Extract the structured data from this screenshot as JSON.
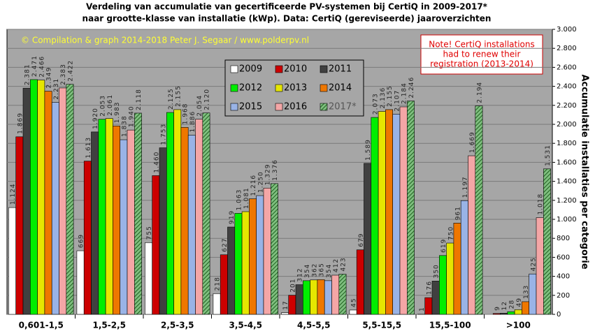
{
  "chart_data": {
    "type": "bar",
    "title": [
      "Verdeling van accumulatie van gecertificeerde PV-systemen bij CertiQ in 2009-2017*",
      "naar grootte-klasse van installatie (kWp).  Data: CertiQ (gereviseerde) jaaroverzichten"
    ],
    "annotation": "© Compilation  & graph 2014-2018 Peter J. Segaar / www.polderpv.nl",
    "note": [
      "Note! CertiQ installations",
      "had to renew their",
      "registration (2013-2014)"
    ],
    "y_label": "Accumulatie installaties per categorie",
    "categories": [
      "0,601-1,5",
      "1,5-2,5",
      "2,5-3,5",
      "3,5-4,5",
      "4,5-5,5",
      "5,5-15,5",
      "15,5-100",
      ">100"
    ],
    "series": [
      {
        "name": "2009",
        "color": "#ffffff",
        "values": [
          1124,
          669,
          755,
          218,
          17,
          45,
          1,
          null
        ],
        "value_labels": [
          "1.124",
          "669",
          "755",
          "218",
          "17",
          "45",
          "1",
          null
        ]
      },
      {
        "name": "2010",
        "color": "#cc0000",
        "values": [
          1869,
          1613,
          1460,
          627,
          201,
          679,
          176,
          9
        ],
        "value_labels": [
          "1.869",
          "1.613",
          "1.460",
          "627",
          "201",
          "679",
          "176",
          "9"
        ]
      },
      {
        "name": "2011",
        "color": "#404040",
        "values": [
          2381,
          1920,
          1753,
          919,
          312,
          1589,
          350,
          12
        ],
        "value_labels": [
          "2.381",
          "1.920",
          "1.753",
          "919",
          "312",
          "1.589",
          "350",
          "12"
        ]
      },
      {
        "name": "2012",
        "color": "#00ee00",
        "values": [
          2471,
          2053,
          2125,
          1063,
          354,
          2073,
          619,
          28
        ],
        "value_labels": [
          "2.471",
          "2.053",
          "2.125",
          "1.063",
          "354",
          "2.073",
          "619",
          "28"
        ]
      },
      {
        "name": "2013",
        "color": "#e6e600",
        "values": [
          2466,
          2061,
          2155,
          1081,
          362,
          2136,
          750,
          49
        ],
        "value_labels": [
          "2.466",
          "2.061",
          "2.155",
          "1.081",
          "362",
          "2.136",
          "750",
          "49"
        ]
      },
      {
        "name": "2014",
        "color": "#ee7700",
        "values": [
          2349,
          1983,
          1968,
          1216,
          365,
          2155,
          961,
          133
        ],
        "value_labels": [
          "2.349",
          "1.983",
          "1.968",
          "1.216",
          "365",
          "2.155",
          "961",
          "133"
        ]
      },
      {
        "name": "2015",
        "color": "#99b3e6",
        "values": [
          2231,
          1838,
          1886,
          1250,
          354,
          2107,
          1197,
          425
        ],
        "value_labels": [
          "2.231",
          "1.838",
          "1.886",
          "1.250",
          "354",
          "2.107",
          "1.197",
          "425"
        ]
      },
      {
        "name": "2016",
        "color": "#f4a6a6",
        "values": [
          2383,
          1940,
          2054,
          1329,
          412,
          2184,
          1669,
          1018
        ],
        "value_labels": [
          "2.383",
          "1.940",
          "2.054",
          "1.329",
          "412",
          "2.184",
          "1.669",
          "1.018"
        ]
      },
      {
        "name": "2017*",
        "color": "#7fbf7f",
        "hatched": true,
        "values": [
          2422,
          2118,
          2120,
          1376,
          423,
          2246,
          2194,
          1531
        ],
        "value_labels": [
          "2.422",
          "2.118",
          "2.120",
          "1.376",
          "423",
          "2.246",
          "2.194",
          "1.531"
        ]
      }
    ],
    "ylim": [
      0,
      3000
    ],
    "yticks": [
      0,
      200,
      400,
      600,
      800,
      {
        "value": 1000,
        "label": "1.000"
      },
      {
        "value": 1200,
        "label": "1.200"
      },
      {
        "value": 1400,
        "label": "1.400"
      },
      {
        "value": 1600,
        "label": "1.600"
      },
      {
        "value": 1800,
        "label": "1.800"
      },
      {
        "value": 2000,
        "label": "2.000"
      },
      {
        "value": 2200,
        "label": "2.200"
      },
      {
        "value": 2400,
        "label": "2.400"
      },
      {
        "value": 2600,
        "label": "2.600"
      },
      {
        "value": 2800,
        "label": "2.800"
      },
      {
        "value": 3000,
        "label": "3.000"
      }
    ],
    "grid": true
  }
}
